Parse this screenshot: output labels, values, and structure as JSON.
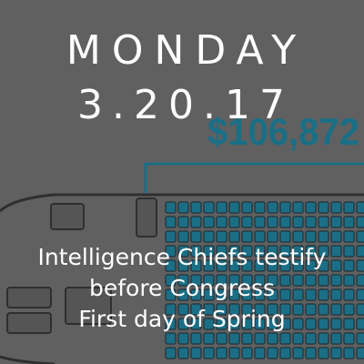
{
  "background": {
    "base_color": "#606060",
    "graphic_color": "#1a6f86",
    "graphic_dark": "#243b44",
    "amount_text": "$106,872"
  },
  "heading": {
    "day": "MONDAY",
    "date": "3.20.17"
  },
  "events": [
    "Intelligence Chiefs testify",
    "before Congress",
    "First day of Spring"
  ]
}
